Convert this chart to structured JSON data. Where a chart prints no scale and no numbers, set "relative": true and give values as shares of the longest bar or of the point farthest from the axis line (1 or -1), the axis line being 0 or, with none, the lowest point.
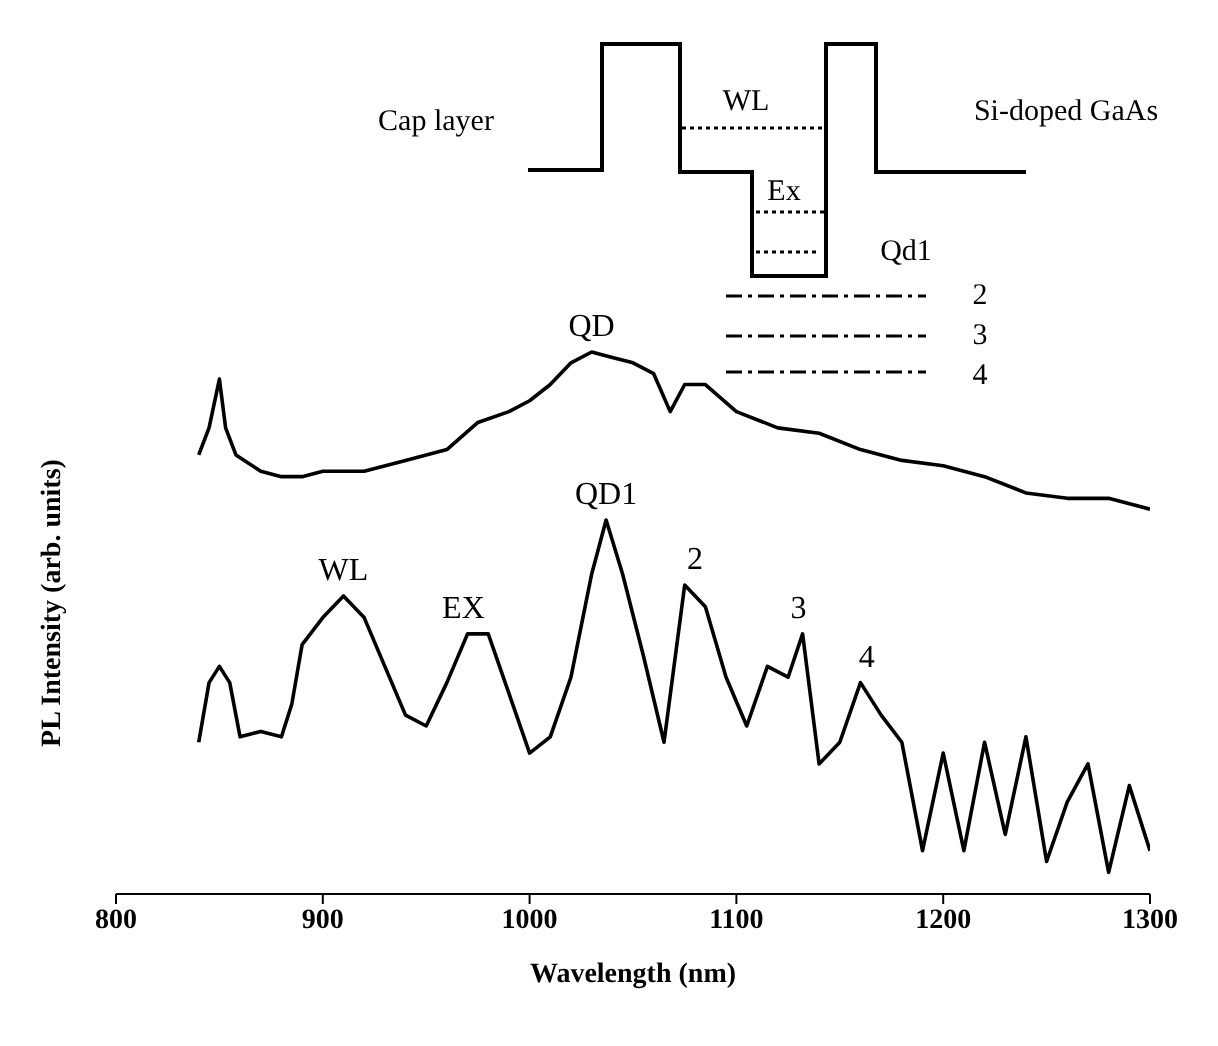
{
  "chart_data": {
    "type": "line",
    "relative": true,
    "xlabel": "Wavelength (nm)",
    "ylabel": "PL Intensity (arb. units)",
    "xlim": [
      800,
      1300
    ],
    "xticks": [
      800,
      900,
      1000,
      1100,
      1200,
      1300
    ],
    "marker": "none",
    "line_style": "solid",
    "series": [
      {
        "color": "#000000",
        "x": [
          840,
          845,
          850,
          853,
          858,
          870,
          880,
          890,
          900,
          920,
          940,
          960,
          975,
          990,
          1000,
          1010,
          1020,
          1030,
          1040,
          1050,
          1060,
          1068,
          1075,
          1085,
          1100,
          1120,
          1140,
          1160,
          1180,
          1200,
          1220,
          1240,
          1260,
          1280,
          1300
        ],
        "values": [
          0.81,
          0.86,
          0.95,
          0.86,
          0.81,
          0.78,
          0.77,
          0.77,
          0.78,
          0.78,
          0.8,
          0.82,
          0.87,
          0.89,
          0.91,
          0.94,
          0.98,
          1,
          0.99,
          0.98,
          0.96,
          0.89,
          0.94,
          0.94,
          0.89,
          0.86,
          0.85,
          0.82,
          0.8,
          0.79,
          0.77,
          0.74,
          0.73,
          0.73,
          0.71
        ]
      },
      {
        "color": "#000000",
        "x": [
          840,
          845,
          850,
          855,
          860,
          870,
          880,
          885,
          890,
          900,
          910,
          920,
          930,
          940,
          950,
          960,
          970,
          980,
          990,
          1000,
          1010,
          1020,
          1030,
          1037,
          1045,
          1055,
          1065,
          1075,
          1085,
          1095,
          1105,
          1115,
          1125,
          1132,
          1140,
          1150,
          1160,
          1170,
          1180,
          1190,
          1200,
          1210,
          1220,
          1230,
          1240,
          1250,
          1260,
          1270,
          1280,
          1290,
          1300
        ],
        "values": [
          0.28,
          0.39,
          0.42,
          0.39,
          0.29,
          0.3,
          0.29,
          0.35,
          0.46,
          0.51,
          0.55,
          0.51,
          0.42,
          0.33,
          0.31,
          0.39,
          0.48,
          0.48,
          0.37,
          0.26,
          0.29,
          0.4,
          0.59,
          0.69,
          0.59,
          0.44,
          0.28,
          0.57,
          0.53,
          0.4,
          0.31,
          0.42,
          0.4,
          0.48,
          0.24,
          0.28,
          0.39,
          0.33,
          0.28,
          0.08,
          0.26,
          0.08,
          0.28,
          0.11,
          0.29,
          0.06,
          0.17,
          0.24,
          0.04,
          0.2,
          0.08
        ]
      }
    ],
    "annotations": [
      {
        "text": "QD",
        "x": 1030,
        "y": 1
      },
      {
        "text": "WL",
        "x": 910,
        "y": 0.55
      },
      {
        "text": "EX",
        "x": 968,
        "y": 0.48
      },
      {
        "text": "QD1",
        "x": 1037,
        "y": 0.69
      },
      {
        "text": "2",
        "x": 1080,
        "y": 0.57
      },
      {
        "text": "3",
        "x": 1130,
        "y": 0.48
      },
      {
        "text": "4",
        "x": 1163,
        "y": 0.39
      },
      "Cap layer",
      "WL",
      "Ex",
      "Qd1",
      "2",
      "3",
      "4",
      "Si-doped GaAs"
    ]
  }
}
